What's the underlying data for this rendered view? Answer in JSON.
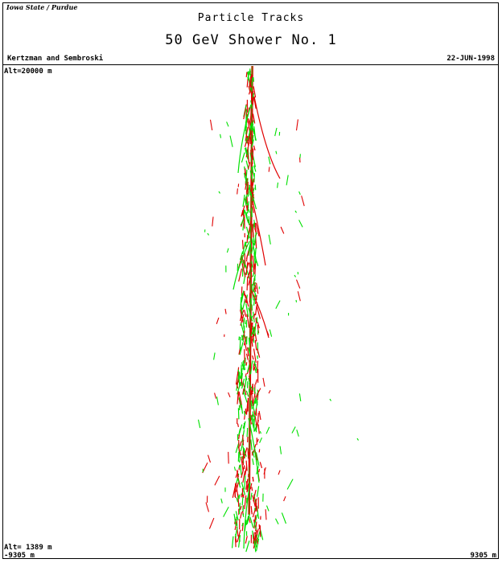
{
  "header": {
    "institution": "Iowa State / Purdue",
    "title": "Particle Tracks",
    "subtitle": "50 GeV Shower No. 1",
    "authors": "Kertzman and Sembroski",
    "date": "22-JUN-1998"
  },
  "axes": {
    "alt_top": "Alt=20000 m",
    "alt_bottom": "Alt= 1389 m",
    "x_left": "-9305 m",
    "x_right": "9305 m"
  },
  "colors": {
    "electron_tracks": "#e00000",
    "photon_tracks": "#00e000"
  }
}
